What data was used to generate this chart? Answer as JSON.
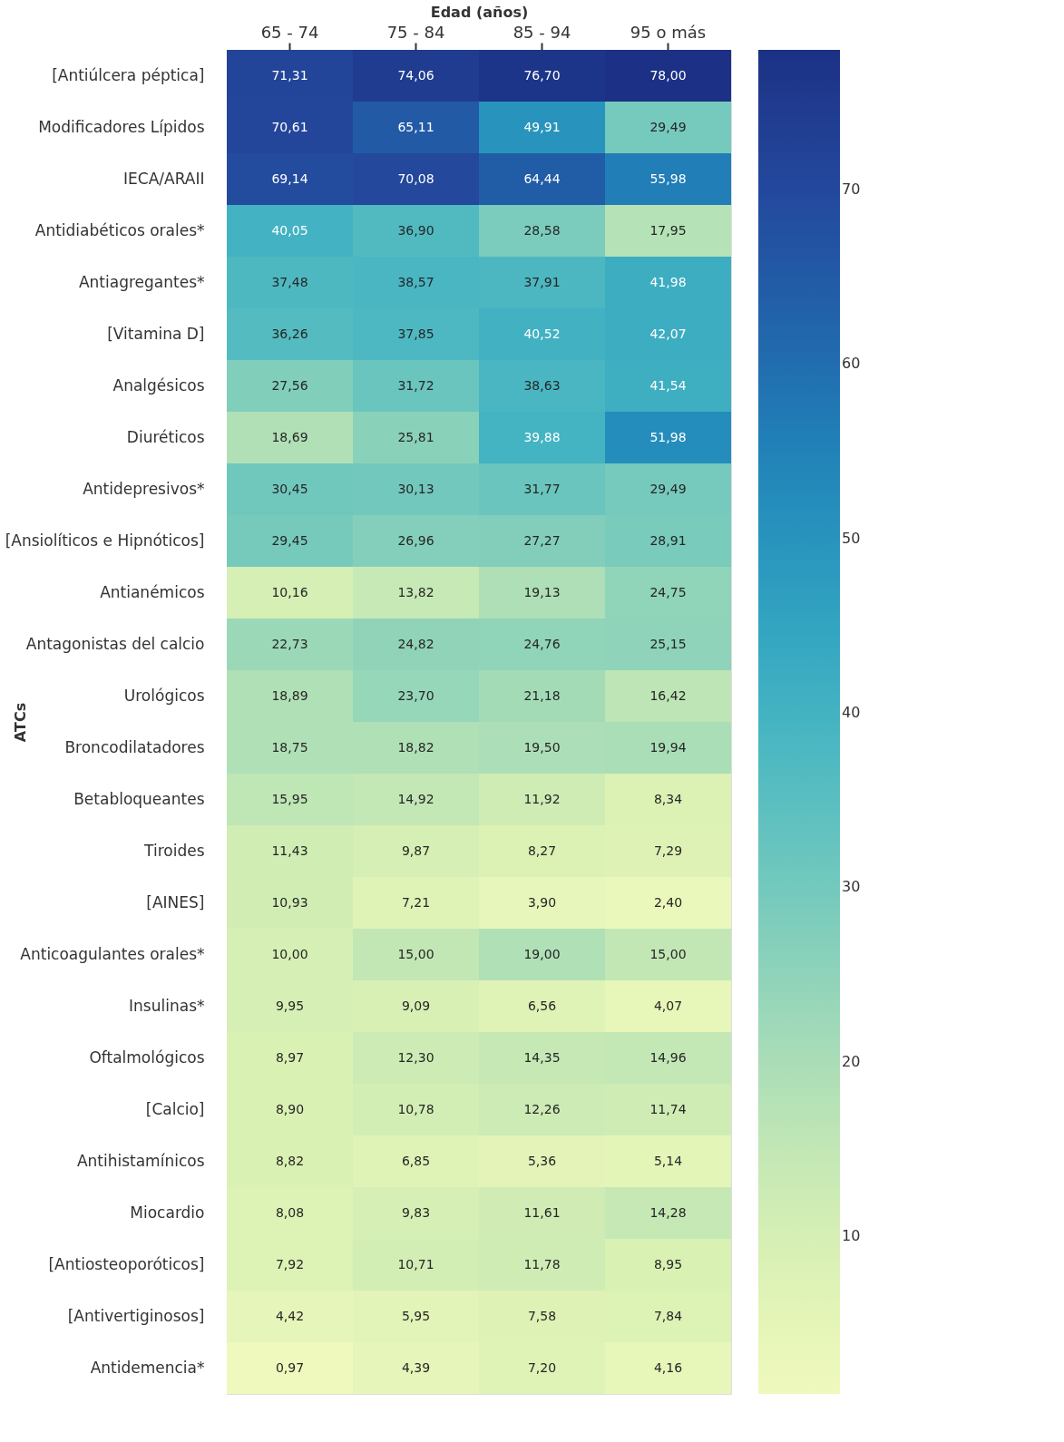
{
  "chart_data": {
    "type": "heatmap",
    "xlabel": "Edad (años)",
    "ylabel": "ATCs",
    "categories": [
      "65 - 74",
      "75 - 84",
      "85 - 94",
      "95 o más"
    ],
    "y_categories": [
      "[Antiúlcera péptica]",
      "Modificadores Lípidos",
      "IECA/ARAII",
      "Antidiabéticos orales*",
      "Antiagregantes*",
      "[Vitamina D]",
      "Analgésicos",
      "Diuréticos",
      "Antidepresivos*",
      "[Ansiolíticos e Hipnóticos]",
      "Antianémicos",
      "Antagonistas del calcio",
      "Urológicos",
      "Broncodilatadores",
      "Betabloqueantes",
      "Tiroides",
      "[AINES]",
      "Anticoagulantes orales*",
      "Insulinas*",
      "Oftalmológicos",
      "[Calcio]",
      "Antihistamínicos",
      "Miocardio",
      "[Antiosteoporóticos]",
      "[Antivertiginosos]",
      "Antidemencia*"
    ],
    "cells": [
      [
        71.31,
        74.06,
        76.7,
        78.0
      ],
      [
        70.61,
        65.11,
        49.91,
        29.49
      ],
      [
        69.14,
        70.08,
        64.44,
        55.98
      ],
      [
        40.05,
        36.9,
        28.58,
        17.95
      ],
      [
        37.48,
        38.57,
        37.91,
        41.98
      ],
      [
        36.26,
        37.85,
        40.52,
        42.07
      ],
      [
        27.56,
        31.72,
        38.63,
        41.54
      ],
      [
        18.69,
        25.81,
        39.88,
        51.98
      ],
      [
        30.45,
        30.13,
        31.77,
        29.49
      ],
      [
        29.45,
        26.96,
        27.27,
        28.91
      ],
      [
        10.16,
        13.82,
        19.13,
        24.75
      ],
      [
        22.73,
        24.82,
        24.76,
        25.15
      ],
      [
        18.89,
        23.7,
        21.18,
        16.42
      ],
      [
        18.75,
        18.82,
        19.5,
        19.94
      ],
      [
        15.95,
        14.92,
        11.92,
        8.34
      ],
      [
        11.43,
        9.87,
        8.27,
        7.29
      ],
      [
        10.93,
        7.21,
        3.9,
        2.4
      ],
      [
        10.0,
        15.0,
        19.0,
        15.0
      ],
      [
        9.95,
        9.09,
        6.56,
        4.07
      ],
      [
        8.97,
        12.3,
        14.35,
        14.96
      ],
      [
        8.9,
        10.78,
        12.26,
        11.74
      ],
      [
        8.82,
        6.85,
        5.36,
        5.14
      ],
      [
        8.08,
        9.83,
        11.61,
        14.28
      ],
      [
        7.92,
        10.71,
        11.78,
        8.95
      ],
      [
        4.42,
        5.95,
        7.58,
        7.84
      ],
      [
        0.97,
        4.39,
        7.2,
        4.16
      ]
    ],
    "cell_labels": [
      [
        "71,31",
        "74,06",
        "76,70",
        "78,00"
      ],
      [
        "70,61",
        "65,11",
        "49,91",
        "29,49"
      ],
      [
        "69,14",
        "70,08",
        "64,44",
        "55,98"
      ],
      [
        "40,05",
        "36,90",
        "28,58",
        "17,95"
      ],
      [
        "37,48",
        "38,57",
        "37,91",
        "41,98"
      ],
      [
        "36,26",
        "37,85",
        "40,52",
        "42,07"
      ],
      [
        "27,56",
        "31,72",
        "38,63",
        "41,54"
      ],
      [
        "18,69",
        "25,81",
        "39,88",
        "51,98"
      ],
      [
        "30,45",
        "30,13",
        "31,77",
        "29,49"
      ],
      [
        "29,45",
        "26,96",
        "27,27",
        "28,91"
      ],
      [
        "10,16",
        "13,82",
        "19,13",
        "24,75"
      ],
      [
        "22,73",
        "24,82",
        "24,76",
        "25,15"
      ],
      [
        "18,89",
        "23,70",
        "21,18",
        "16,42"
      ],
      [
        "18,75",
        "18,82",
        "19,50",
        "19,94"
      ],
      [
        "15,95",
        "14,92",
        "11,92",
        "8,34"
      ],
      [
        "11,43",
        "9,87",
        "8,27",
        "7,29"
      ],
      [
        "10,93",
        "7,21",
        "3,90",
        "2,40"
      ],
      [
        "10,00",
        "15,00",
        "19,00",
        "15,00"
      ],
      [
        "9,95",
        "9,09",
        "6,56",
        "4,07"
      ],
      [
        "8,97",
        "12,30",
        "14,35",
        "14,96"
      ],
      [
        "8,90",
        "10,78",
        "12,26",
        "11,74"
      ],
      [
        "8,82",
        "6,85",
        "5,36",
        "5,14"
      ],
      [
        "8,08",
        "9,83",
        "11,61",
        "14,28"
      ],
      [
        "7,92",
        "10,71",
        "11,78",
        "8,95"
      ],
      [
        "4,42",
        "5,95",
        "7,58",
        "7,84"
      ],
      [
        "0,97",
        "4,39",
        "7,20",
        "4,16"
      ]
    ],
    "clim": [
      0.97,
      78.0
    ],
    "cticks": [
      10,
      20,
      30,
      40,
      50,
      60,
      70
    ]
  }
}
